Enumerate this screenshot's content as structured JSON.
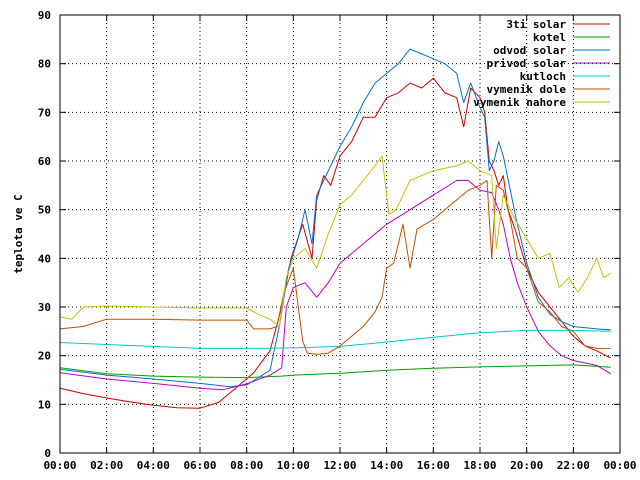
{
  "chart_data": {
    "type": "line",
    "title": "",
    "xlabel": "",
    "ylabel": "teplota ve C",
    "xlim": [
      0,
      24
    ],
    "ylim": [
      0,
      90
    ],
    "grid": true,
    "legend_position": "top-right",
    "x_tick_labels": [
      "00:00",
      "02:00",
      "04:00",
      "06:00",
      "08:00",
      "10:00",
      "12:00",
      "14:00",
      "16:00",
      "18:00",
      "20:00",
      "22:00",
      "00:00"
    ],
    "y_tick_labels": [
      "0",
      "10",
      "20",
      "30",
      "40",
      "50",
      "60",
      "70",
      "80",
      "90"
    ],
    "series": [
      {
        "name": "3ti solar",
        "color": "#d00000",
        "points": [
          [
            0,
            13.3
          ],
          [
            1,
            12.2
          ],
          [
            2,
            11.3
          ],
          [
            3,
            10.5
          ],
          [
            4,
            9.8
          ],
          [
            5,
            9.3
          ],
          [
            6,
            9.2
          ],
          [
            6.8,
            10.4
          ],
          [
            7.5,
            13.2
          ],
          [
            8.3,
            16.5
          ],
          [
            9,
            21
          ],
          [
            9.5,
            30
          ],
          [
            9.9,
            40
          ],
          [
            10.4,
            47
          ],
          [
            10.8,
            40
          ],
          [
            11,
            52
          ],
          [
            11.3,
            57
          ],
          [
            11.6,
            55
          ],
          [
            12,
            61
          ],
          [
            12.5,
            64
          ],
          [
            13,
            69
          ],
          [
            13.5,
            69
          ],
          [
            14,
            73
          ],
          [
            14.5,
            74
          ],
          [
            15,
            76
          ],
          [
            15.5,
            75
          ],
          [
            16,
            77
          ],
          [
            16.5,
            74
          ],
          [
            17,
            73
          ],
          [
            17.3,
            67
          ],
          [
            17.6,
            75
          ],
          [
            18,
            73
          ],
          [
            18.2,
            70
          ],
          [
            18.4,
            60
          ],
          [
            18.6,
            58
          ],
          [
            18.8,
            55
          ],
          [
            19,
            57
          ],
          [
            19.2,
            50
          ],
          [
            19.5,
            46
          ],
          [
            20,
            38
          ],
          [
            20.5,
            33
          ],
          [
            21,
            30
          ],
          [
            21.5,
            27
          ],
          [
            22,
            24
          ],
          [
            22.5,
            22
          ],
          [
            23,
            21
          ],
          [
            23.6,
            19.5
          ]
        ]
      },
      {
        "name": "kotel",
        "color": "#00a000",
        "points": [
          [
            0,
            17.5
          ],
          [
            2,
            16.3
          ],
          [
            4,
            15.8
          ],
          [
            6,
            15.6
          ],
          [
            8,
            15.5
          ],
          [
            9.5,
            15.8
          ],
          [
            10,
            16
          ],
          [
            12,
            16.4
          ],
          [
            14,
            17
          ],
          [
            16,
            17.4
          ],
          [
            18,
            17.7
          ],
          [
            20,
            17.9
          ],
          [
            22,
            18.1
          ],
          [
            23.6,
            17.6
          ]
        ]
      },
      {
        "name": "odvod solar",
        "color": "#0070d0",
        "points": [
          [
            0,
            17.2
          ],
          [
            2,
            16
          ],
          [
            4,
            15.2
          ],
          [
            6,
            14.3
          ],
          [
            7.3,
            13.6
          ],
          [
            8,
            14
          ],
          [
            9,
            17
          ],
          [
            9.4,
            26
          ],
          [
            9.8,
            38
          ],
          [
            10.2,
            44
          ],
          [
            10.5,
            50
          ],
          [
            10.8,
            43
          ],
          [
            11,
            53
          ],
          [
            11.4,
            57
          ],
          [
            12,
            63
          ],
          [
            12.5,
            67
          ],
          [
            13,
            72
          ],
          [
            13.5,
            76
          ],
          [
            14,
            78
          ],
          [
            14.5,
            80
          ],
          [
            15,
            83
          ],
          [
            15.5,
            82
          ],
          [
            16,
            81
          ],
          [
            16.5,
            80
          ],
          [
            17,
            78
          ],
          [
            17.3,
            72
          ],
          [
            17.6,
            76
          ],
          [
            18,
            71
          ],
          [
            18.2,
            69
          ],
          [
            18.4,
            58
          ],
          [
            18.6,
            60
          ],
          [
            18.8,
            64
          ],
          [
            19,
            61
          ],
          [
            19.3,
            54
          ],
          [
            19.6,
            47
          ],
          [
            20,
            39
          ],
          [
            20.5,
            32
          ],
          [
            21,
            28.5
          ],
          [
            21.5,
            27
          ],
          [
            22,
            26
          ],
          [
            23,
            25.5
          ],
          [
            23.6,
            25.3
          ]
        ]
      },
      {
        "name": "privod solar",
        "color": "#c000c0",
        "points": [
          [
            0,
            16.5
          ],
          [
            2,
            15.2
          ],
          [
            4,
            14.3
          ],
          [
            6,
            13.3
          ],
          [
            7,
            13
          ],
          [
            8,
            14.2
          ],
          [
            9,
            16
          ],
          [
            9.5,
            17.5
          ],
          [
            9.7,
            30
          ],
          [
            10,
            34
          ],
          [
            10.5,
            35
          ],
          [
            11,
            32
          ],
          [
            11.5,
            35
          ],
          [
            12,
            39
          ],
          [
            13,
            43
          ],
          [
            14,
            47
          ],
          [
            15,
            50
          ],
          [
            16,
            53
          ],
          [
            17,
            56
          ],
          [
            17.5,
            56
          ],
          [
            18,
            54
          ],
          [
            18.5,
            53.5
          ],
          [
            18.8,
            50
          ],
          [
            19,
            47
          ],
          [
            19.3,
            40
          ],
          [
            19.6,
            35
          ],
          [
            20,
            30
          ],
          [
            20.5,
            25
          ],
          [
            21,
            22
          ],
          [
            21.5,
            20
          ],
          [
            22,
            19
          ],
          [
            23,
            18
          ],
          [
            23.6,
            16.3
          ]
        ]
      },
      {
        "name": "kutloch",
        "color": "#00c8c8",
        "points": [
          [
            0,
            22.7
          ],
          [
            2,
            22.3
          ],
          [
            4,
            21.9
          ],
          [
            6,
            21.5
          ],
          [
            8,
            21.5
          ],
          [
            10,
            21.6
          ],
          [
            12,
            21.9
          ],
          [
            14,
            22.8
          ],
          [
            16,
            23.8
          ],
          [
            18,
            24.7
          ],
          [
            20,
            25.2
          ],
          [
            22,
            25.2
          ],
          [
            23.6,
            25
          ]
        ]
      },
      {
        "name": "vymenik dole",
        "color": "#c05000",
        "points": [
          [
            0,
            25.5
          ],
          [
            1,
            26
          ],
          [
            2,
            27.5
          ],
          [
            4,
            27.5
          ],
          [
            6,
            27.3
          ],
          [
            8,
            27.3
          ],
          [
            8.3,
            25.5
          ],
          [
            9,
            25.5
          ],
          [
            9.3,
            26
          ],
          [
            9.6,
            33
          ],
          [
            10,
            38
          ],
          [
            10.4,
            23
          ],
          [
            10.6,
            20.5
          ],
          [
            11,
            20.3
          ],
          [
            11.5,
            20.5
          ],
          [
            12,
            22
          ],
          [
            12.5,
            24
          ],
          [
            13,
            26
          ],
          [
            13.5,
            29
          ],
          [
            13.8,
            32
          ],
          [
            14,
            38
          ],
          [
            14.3,
            39
          ],
          [
            14.7,
            47
          ],
          [
            15,
            38
          ],
          [
            15.3,
            46
          ],
          [
            16,
            48
          ],
          [
            17,
            52
          ],
          [
            17.5,
            54
          ],
          [
            18,
            55
          ],
          [
            18.3,
            56
          ],
          [
            18.5,
            40
          ],
          [
            18.7,
            55
          ],
          [
            19,
            54
          ],
          [
            19.3,
            48
          ],
          [
            19.6,
            40
          ],
          [
            20,
            38
          ],
          [
            20.5,
            31
          ],
          [
            21,
            29
          ],
          [
            21.5,
            26
          ],
          [
            22,
            25
          ],
          [
            22.5,
            22
          ],
          [
            23,
            21.5
          ],
          [
            23.6,
            21.5
          ]
        ]
      },
      {
        "name": "vymenik nahore",
        "color": "#c8c000",
        "points": [
          [
            0,
            28
          ],
          [
            0.5,
            27.5
          ],
          [
            1,
            30
          ],
          [
            2,
            30.2
          ],
          [
            4,
            30
          ],
          [
            6,
            29.8
          ],
          [
            8,
            29.8
          ],
          [
            8.5,
            28.5
          ],
          [
            9,
            27.5
          ],
          [
            9.4,
            26
          ],
          [
            9.7,
            36
          ],
          [
            10,
            40
          ],
          [
            10.5,
            42
          ],
          [
            11,
            38
          ],
          [
            11.5,
            45
          ],
          [
            12,
            51
          ],
          [
            12.5,
            53
          ],
          [
            13,
            56
          ],
          [
            13.5,
            59
          ],
          [
            13.8,
            61
          ],
          [
            14.1,
            49
          ],
          [
            14.4,
            50
          ],
          [
            14.7,
            53
          ],
          [
            15,
            56
          ],
          [
            16,
            58
          ],
          [
            17,
            59
          ],
          [
            17.5,
            60
          ],
          [
            18,
            58
          ],
          [
            18.5,
            57
          ],
          [
            18.7,
            42
          ],
          [
            19,
            53
          ],
          [
            19.5,
            48
          ],
          [
            20,
            44
          ],
          [
            20.5,
            40
          ],
          [
            21,
            41
          ],
          [
            21.4,
            34
          ],
          [
            21.8,
            36
          ],
          [
            22.2,
            33
          ],
          [
            22.6,
            36
          ],
          [
            23,
            40
          ],
          [
            23.3,
            36
          ],
          [
            23.6,
            37
          ]
        ]
      }
    ]
  }
}
